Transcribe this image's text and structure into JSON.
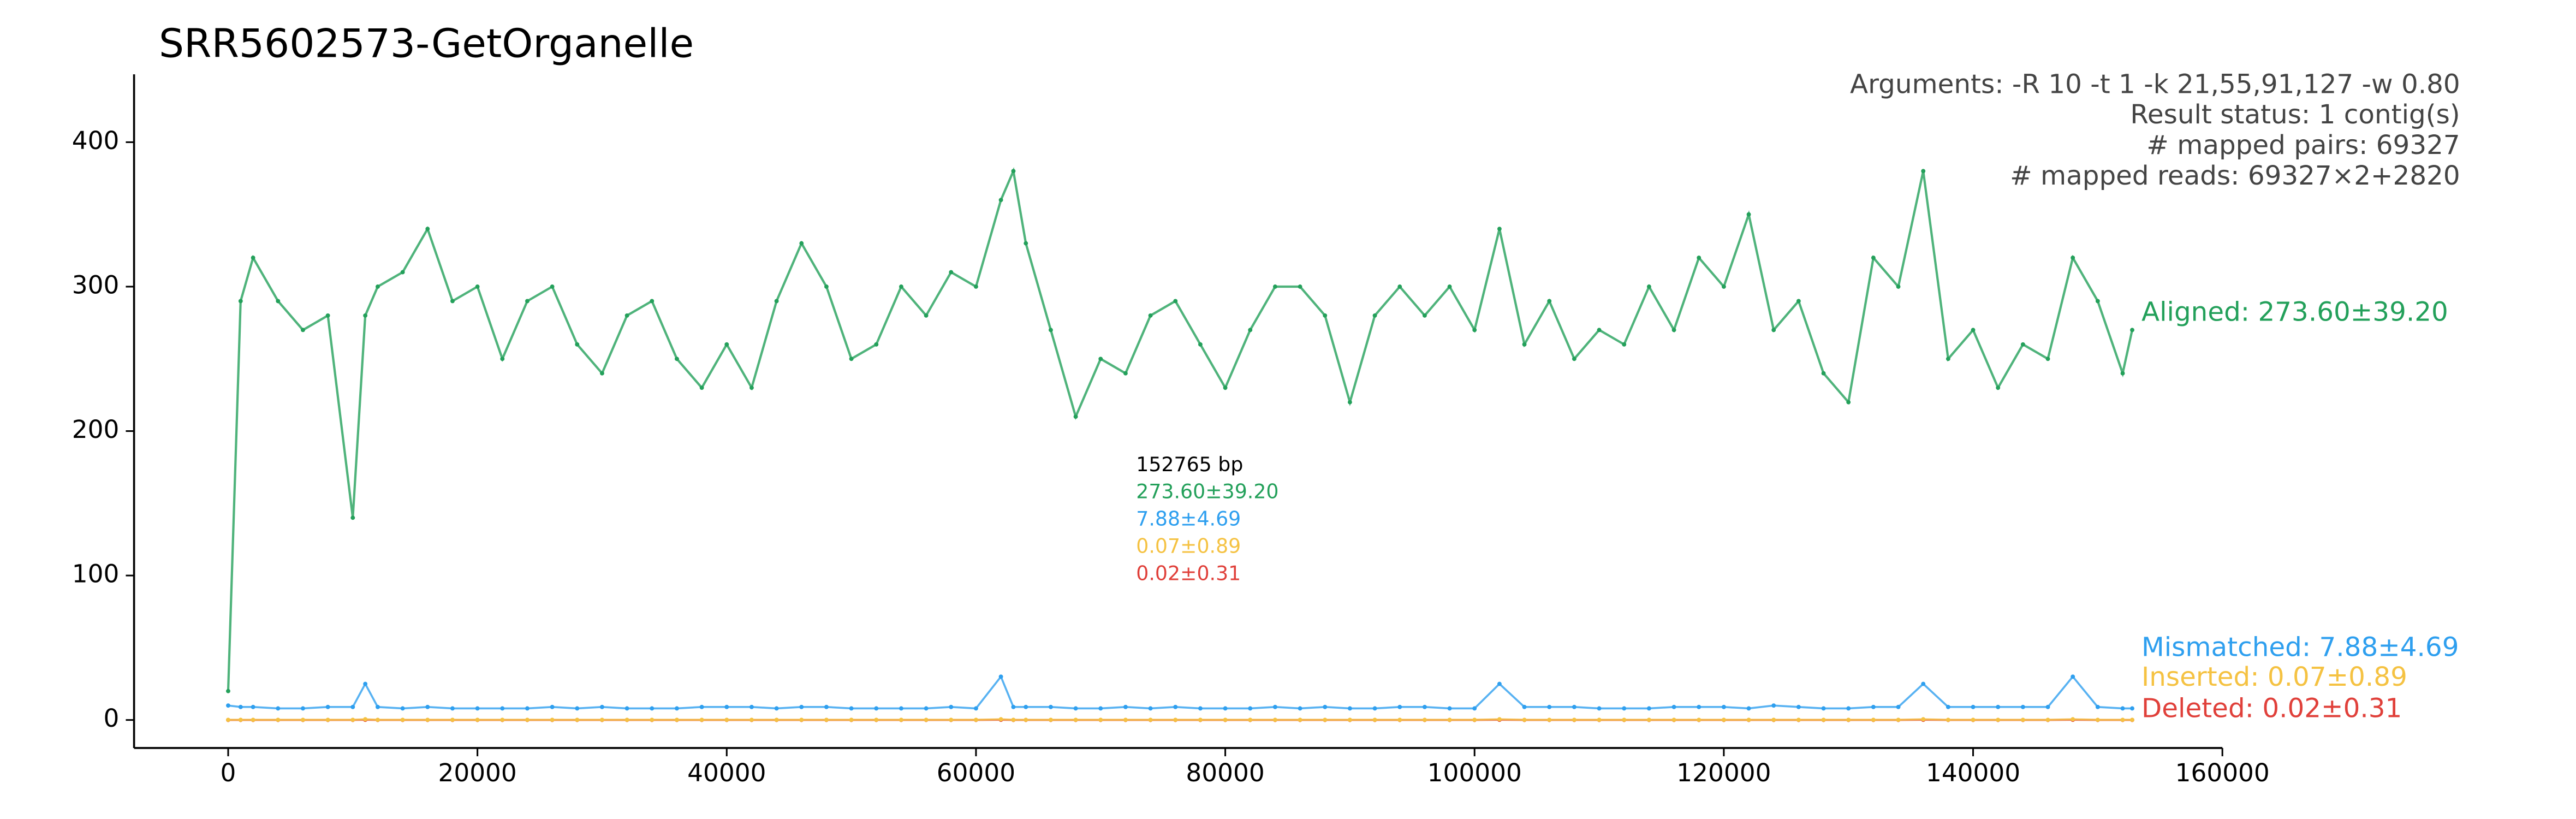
{
  "chart_data": {
    "type": "scatter",
    "title": "SRR5602573-GetOrganelle",
    "annotations": [
      "Arguments: -R 10 -t 1 -k 21,55,91,127 -w 0.80",
      "Result status: 1 contig(s)",
      "# mapped pairs: 69327",
      "# mapped reads: 69327×2+2820"
    ],
    "center_labels": [
      "152765 bp",
      "273.60±39.20",
      "7.88±4.69",
      "0.07±0.89",
      "0.02±0.31"
    ],
    "center_colors": [
      "#000000",
      "#23a05a",
      "#2e9fef",
      "#f5c242",
      "#e0403a"
    ],
    "x": [
      0,
      1000,
      2000,
      4000,
      6000,
      8000,
      10000,
      11000,
      12000,
      14000,
      16000,
      18000,
      20000,
      22000,
      24000,
      26000,
      28000,
      30000,
      32000,
      34000,
      36000,
      38000,
      40000,
      42000,
      44000,
      46000,
      48000,
      50000,
      52000,
      54000,
      56000,
      58000,
      60000,
      62000,
      63000,
      64000,
      66000,
      68000,
      70000,
      72000,
      74000,
      76000,
      78000,
      80000,
      82000,
      84000,
      86000,
      88000,
      90000,
      92000,
      94000,
      96000,
      98000,
      100000,
      102000,
      104000,
      106000,
      108000,
      110000,
      112000,
      114000,
      116000,
      118000,
      120000,
      122000,
      124000,
      126000,
      128000,
      130000,
      132000,
      134000,
      136000,
      138000,
      140000,
      142000,
      144000,
      146000,
      148000,
      150000,
      152000,
      152765
    ],
    "series": [
      {
        "name": "Aligned: 273.60±39.20",
        "color": "#23a05a",
        "values": [
          20,
          290,
          320,
          290,
          270,
          280,
          140,
          280,
          300,
          310,
          340,
          290,
          300,
          250,
          290,
          300,
          260,
          240,
          280,
          290,
          250,
          230,
          260,
          230,
          290,
          330,
          300,
          250,
          260,
          300,
          280,
          310,
          300,
          360,
          380,
          330,
          270,
          210,
          250,
          240,
          280,
          290,
          260,
          230,
          270,
          300,
          300,
          280,
          220,
          280,
          300,
          280,
          300,
          270,
          340,
          260,
          290,
          250,
          270,
          260,
          300,
          270,
          320,
          300,
          350,
          270,
          290,
          240,
          220,
          320,
          300,
          380,
          250,
          270,
          230,
          260,
          250,
          320,
          290,
          240,
          270
        ]
      },
      {
        "name": "Mismatched: 7.88±4.69",
        "color": "#2e9fef",
        "values": [
          10,
          9,
          9,
          8,
          8,
          9,
          9,
          25,
          9,
          8,
          9,
          8,
          8,
          8,
          8,
          9,
          8,
          9,
          8,
          8,
          8,
          9,
          9,
          9,
          8,
          9,
          9,
          8,
          8,
          8,
          8,
          9,
          8,
          30,
          9,
          9,
          9,
          8,
          8,
          9,
          8,
          9,
          8,
          8,
          8,
          9,
          8,
          9,
          8,
          8,
          9,
          9,
          8,
          8,
          25,
          9,
          9,
          9,
          8,
          8,
          8,
          9,
          9,
          9,
          8,
          10,
          9,
          8,
          8,
          9,
          9,
          25,
          9,
          9,
          9,
          9,
          9,
          30,
          9,
          8,
          8
        ]
      },
      {
        "name": "Inserted: 0.07±0.89",
        "color": "#f5c242",
        "values": [
          0.1,
          0.1,
          0.1,
          0.1,
          0.1,
          0.1,
          0.1,
          0.5,
          0.1,
          0.1,
          0.1,
          0.1,
          0.1,
          0.1,
          0.1,
          0.1,
          0.1,
          0.1,
          0.1,
          0.1,
          0.1,
          0.1,
          0.1,
          0.1,
          0.1,
          0.1,
          0.1,
          0.1,
          0.1,
          0.1,
          0.1,
          0.1,
          0.1,
          0.5,
          0.1,
          0.1,
          0.1,
          0.1,
          0.1,
          0.1,
          0.1,
          0.1,
          0.1,
          0.1,
          0.1,
          0.1,
          0.1,
          0.1,
          0.1,
          0.1,
          0.1,
          0.1,
          0.1,
          0.1,
          0.5,
          0.1,
          0.1,
          0.1,
          0.1,
          0.1,
          0.1,
          0.1,
          0.1,
          0.1,
          0.1,
          0.1,
          0.1,
          0.1,
          0.1,
          0.1,
          0.1,
          0.5,
          0.1,
          0.1,
          0.1,
          0.1,
          0.1,
          0.5,
          0.1,
          0.1,
          0.1
        ]
      },
      {
        "name": "Deleted: 0.02±0.31",
        "color": "#e0403a",
        "values": [
          0,
          0,
          0,
          0,
          0,
          0,
          0,
          0.1,
          0,
          0,
          0,
          0,
          0,
          0,
          0,
          0,
          0,
          0,
          0,
          0,
          0,
          0,
          0,
          0,
          0,
          0,
          0,
          0,
          0,
          0,
          0,
          0,
          0,
          0.1,
          0,
          0,
          0,
          0,
          0,
          0,
          0,
          0,
          0,
          0,
          0,
          0,
          0,
          0,
          0,
          0,
          0,
          0,
          0,
          0,
          0.1,
          0,
          0,
          0,
          0,
          0,
          0,
          0,
          0,
          0,
          0,
          0,
          0,
          0,
          0,
          0,
          0,
          0.1,
          0,
          0,
          0,
          0,
          0,
          0.1,
          0,
          0,
          0
        ]
      }
    ],
    "xlim": [
      -7550,
      160000
    ],
    "xticks": [
      0,
      20000,
      40000,
      60000,
      80000,
      100000,
      120000,
      140000,
      160000
    ],
    "ylim": [
      -19.4,
      447
    ],
    "yticks": [
      0,
      100,
      200,
      300,
      400
    ]
  }
}
